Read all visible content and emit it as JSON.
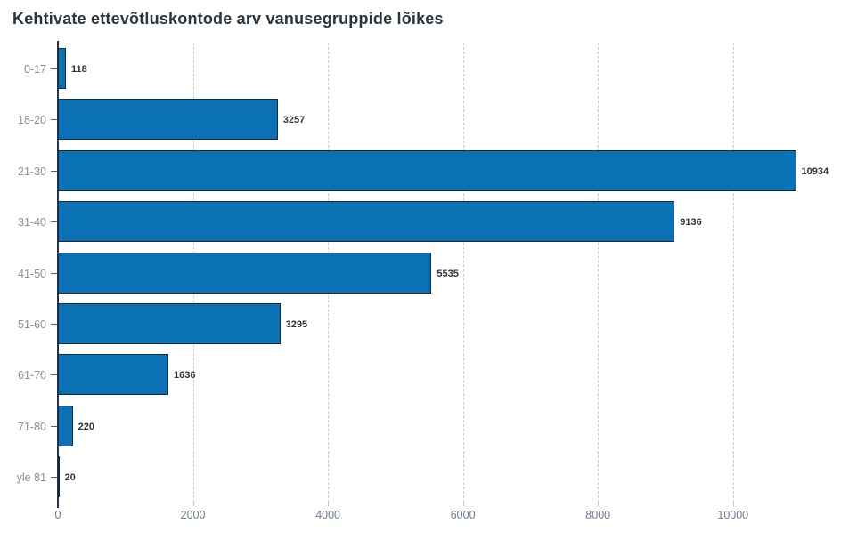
{
  "chart_data": {
    "type": "bar",
    "orientation": "horizontal",
    "title": "Kehtivate ettevõtluskontode arv vanusegruppide lõikes",
    "categories": [
      "0-17",
      "18-20",
      "21-30",
      "31-40",
      "41-50",
      "51-60",
      "61-70",
      "71-80",
      "yle 81"
    ],
    "values": [
      118,
      3257,
      10934,
      9136,
      5535,
      3295,
      1636,
      220,
      20
    ],
    "value_labels": [
      "118",
      "3257",
      "10934",
      "9136",
      "5535",
      "3295",
      "1636",
      "220",
      "20"
    ],
    "x_ticks": [
      0,
      2000,
      4000,
      6000,
      8000,
      10000
    ],
    "x_tick_labels": [
      "0",
      "2000",
      "4000",
      "6000",
      "8000",
      "10000"
    ],
    "xlim": [
      0,
      11600
    ],
    "xlabel": "",
    "ylabel": "",
    "grid": "vertical-dashed",
    "legend_position": "none",
    "colors": {
      "bar_fill": "#0b71b5",
      "bar_stroke": "#1c2a38",
      "axis_line": "#1f3450",
      "title_text": "#2a3540",
      "category_text": "#8391a2",
      "tick_text": "#6d7d93",
      "value_text": "#333333",
      "gridline": "#cccccc",
      "background": "#ffffff"
    }
  }
}
